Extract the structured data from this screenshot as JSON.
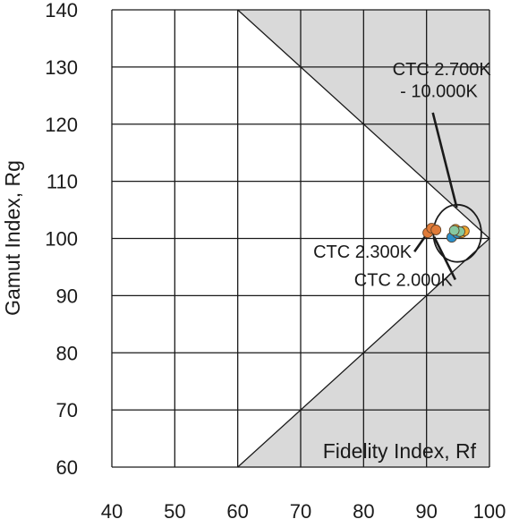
{
  "chart_data": {
    "type": "scatter",
    "title": "",
    "xlabel": "Fidelity Index, Rf",
    "ylabel": "Gamut Index, Rg",
    "xlim": [
      40,
      100
    ],
    "ylim": [
      60,
      140
    ],
    "xticks": [
      40,
      50,
      60,
      70,
      80,
      90,
      100
    ],
    "yticks": [
      60,
      70,
      80,
      90,
      100,
      110,
      120,
      130,
      140
    ],
    "grid": true,
    "shaded_region_color": "#d9d9d9",
    "boundary_polygon": [
      [
        60,
        140
      ],
      [
        100,
        100
      ],
      [
        60,
        60
      ]
    ],
    "series": [
      {
        "color": "#e07b39",
        "points": [
          [
            90.2,
            101.0
          ],
          [
            90.8,
            101.8
          ],
          [
            91.5,
            101.5
          ]
        ]
      },
      {
        "color": "#f0a830",
        "points": [
          [
            94.6,
            101.6
          ],
          [
            95.6,
            101.0
          ],
          [
            96.0,
            101.3
          ]
        ]
      },
      {
        "color": "#2c8fc9",
        "points": [
          [
            94.0,
            100.2
          ],
          [
            94.9,
            100.9
          ]
        ]
      },
      {
        "color": "#86c8a0",
        "points": [
          [
            95.3,
            101.2
          ],
          [
            94.4,
            101.4
          ]
        ]
      }
    ],
    "annotations": [
      {
        "text": "CTC 2.700K",
        "line": 1,
        "x": 84.6,
        "y": 128.6,
        "target": [
          94.8,
          105.4
        ]
      },
      {
        "text": "- 10.000K",
        "line": 2,
        "x": 85.8,
        "y": 124.7
      },
      {
        "text": "CTC 2.300K",
        "x": 72.0,
        "y": 96.6,
        "target": [
          90.2,
          101.0
        ]
      },
      {
        "text": "CTC 2.000K",
        "x": 78.5,
        "y": 91.7,
        "target": [
          91.2,
          100.3
        ]
      }
    ],
    "circle": {
      "cx": 94.9,
      "cy": 100.9,
      "rx": 3.8,
      "ry": 5.0
    }
  }
}
